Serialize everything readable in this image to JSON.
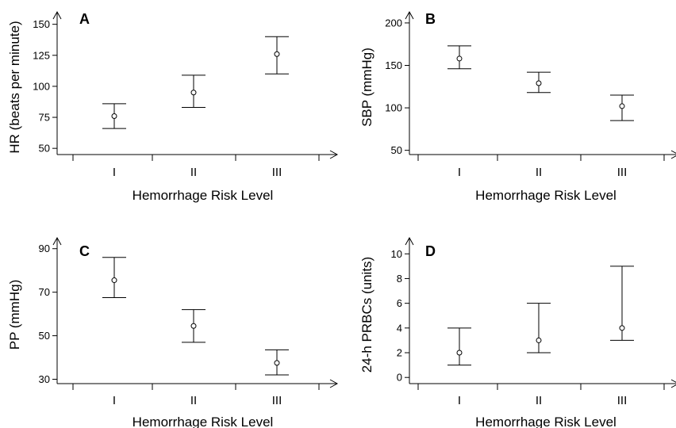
{
  "chart_data": [
    {
      "type": "scatter",
      "panel": "A",
      "xlabel": "Hemorrhage Risk Level",
      "ylabel": "HR (beats per minute)",
      "categories": [
        "I",
        "II",
        "III"
      ],
      "yticks": [
        50,
        75,
        100,
        125,
        150
      ],
      "ylim": [
        45,
        160
      ],
      "series": [
        {
          "values": [
            76,
            95,
            126
          ],
          "lower": [
            66,
            83,
            110
          ],
          "upper": [
            86,
            109,
            140
          ]
        }
      ]
    },
    {
      "type": "scatter",
      "panel": "B",
      "xlabel": "Hemorrhage Risk Level",
      "ylabel": "SBP (mmHg)",
      "categories": [
        "I",
        "II",
        "III"
      ],
      "yticks": [
        50,
        100,
        150,
        200
      ],
      "ylim": [
        45,
        213
      ],
      "series": [
        {
          "values": [
            158,
            129,
            102
          ],
          "lower": [
            146,
            118,
            85
          ],
          "upper": [
            173,
            142,
            115
          ]
        }
      ]
    },
    {
      "type": "scatter",
      "panel": "C",
      "xlabel": "Hemorrhage Risk Level",
      "ylabel": "PP (mmHg)",
      "categories": [
        "I",
        "II",
        "III"
      ],
      "yticks": [
        30,
        50,
        70,
        90
      ],
      "ylim": [
        28,
        95
      ],
      "series": [
        {
          "values": [
            75.5,
            54.5,
            37.5
          ],
          "lower": [
            67.5,
            47,
            32
          ],
          "upper": [
            86,
            62,
            43.5
          ]
        }
      ]
    },
    {
      "type": "scatter",
      "panel": "D",
      "xlabel": "Hemorrhage Risk Level",
      "ylabel": "24-h PRBCs (units)",
      "categories": [
        "I",
        "II",
        "III"
      ],
      "yticks": [
        0,
        2,
        4,
        6,
        8,
        10
      ],
      "ylim": [
        -0.5,
        11.3
      ],
      "series": [
        {
          "values": [
            2,
            3,
            4
          ],
          "lower": [
            1,
            2,
            3
          ],
          "upper": [
            4,
            6,
            9
          ]
        }
      ]
    }
  ]
}
